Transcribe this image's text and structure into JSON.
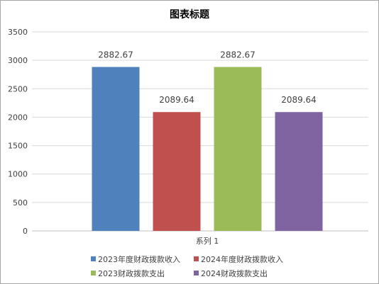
{
  "chart_data": {
    "type": "bar",
    "title": "图表标题",
    "categories": [
      "系列 1"
    ],
    "series": [
      {
        "name": "2023年度财政拨款收入",
        "values": [
          2882.67
        ],
        "color": "#4f81bd"
      },
      {
        "name": "2024年度财政拨款收入",
        "values": [
          2089.64
        ],
        "color": "#c0504d"
      },
      {
        "name": "2023财政拨款支出",
        "values": [
          2882.67
        ],
        "color": "#9bbb59"
      },
      {
        "name": "2024财政拨款支出",
        "values": [
          2089.64
        ],
        "color": "#8064a2"
      }
    ],
    "data_labels": [
      "2882.67",
      "2089.64",
      "2882.67",
      "2089.64"
    ],
    "ylim": [
      0,
      3500
    ],
    "yticks": [
      0,
      500,
      1000,
      1500,
      2000,
      2500,
      3000,
      3500
    ],
    "grid": true,
    "legend": "bottom"
  }
}
